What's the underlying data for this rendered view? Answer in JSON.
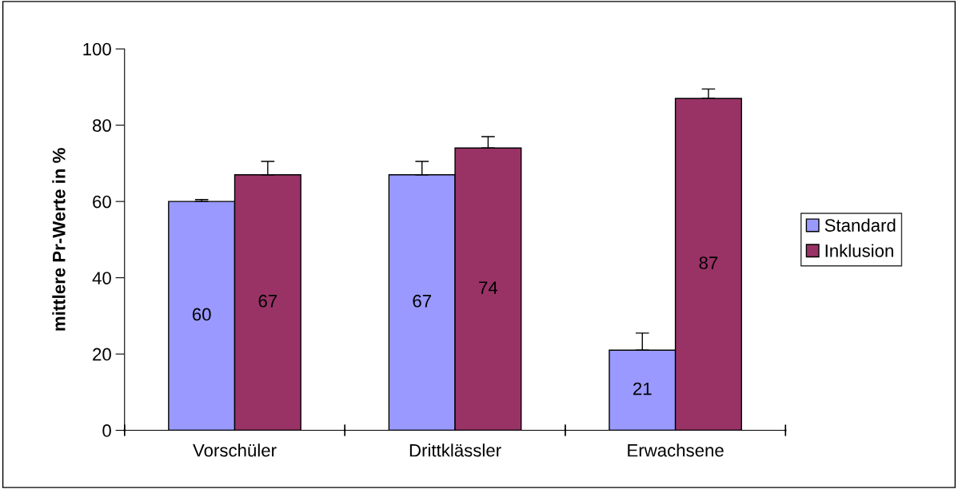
{
  "chart_data": {
    "type": "bar",
    "ylabel": "mittlere Pr-Werte in %",
    "categories": [
      "Vorschüler",
      "Drittklässler",
      "Erwachsene"
    ],
    "series": [
      {
        "name": "Standard",
        "color": "#9999ff",
        "values": [
          60,
          67,
          21
        ],
        "value_labels": [
          "60",
          "67",
          "21"
        ],
        "errors": [
          [
            60,
            60.5
          ],
          [
            67,
            70.5
          ],
          [
            21,
            25.5
          ]
        ]
      },
      {
        "name": "Inklusion",
        "color": "#993366",
        "values": [
          67,
          74,
          87
        ],
        "value_labels": [
          "67",
          "74",
          "87"
        ],
        "errors": [
          [
            67,
            70.5
          ],
          [
            74,
            77
          ],
          [
            87,
            89.5
          ]
        ]
      }
    ],
    "ylim": [
      0,
      100
    ],
    "yticks": [
      0,
      20,
      40,
      60,
      80,
      100
    ],
    "grid": false,
    "legend": "right"
  }
}
